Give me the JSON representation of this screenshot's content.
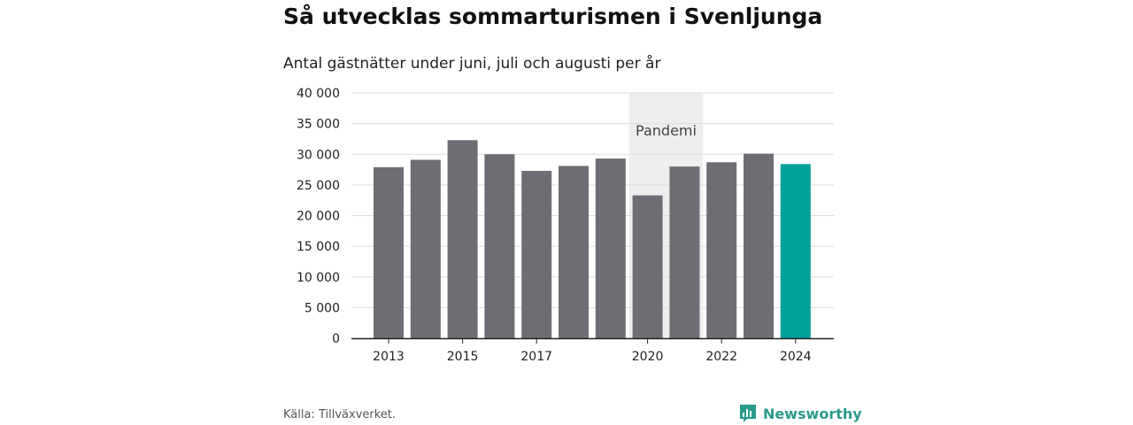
{
  "title": "Så utvecklas sommarturismen i Svenljunga",
  "subtitle": "Antal gästnätter under juni, juli och augusti per år",
  "source": "Källa: Tillväxverket.",
  "brand": "Newsworthy",
  "brand_icon": "newsworthy-logo-icon",
  "colors": {
    "bar": "#6e6d74",
    "highlight": "#00a19a",
    "shade": "#eeeeee",
    "grid": "#dddddd",
    "brand": "#2a9a8c"
  },
  "chart_data": {
    "type": "bar",
    "title": "Så utvecklas sommarturismen i Svenljunga",
    "subtitle": "Antal gästnätter under juni, juli och augusti per år",
    "xlabel": "",
    "ylabel": "",
    "ylim": [
      0,
      40000
    ],
    "yticks": [
      0,
      5000,
      10000,
      15000,
      20000,
      25000,
      30000,
      35000,
      40000
    ],
    "ytick_labels": [
      "0",
      "5 000",
      "10 000",
      "15 000",
      "20 000",
      "25 000",
      "30 000",
      "35 000",
      "40 000"
    ],
    "categories": [
      "2013",
      "2014",
      "2015",
      "2016",
      "2017",
      "2018",
      "2019",
      "2020",
      "2021",
      "2022",
      "2023",
      "2024"
    ],
    "xtick_labels": [
      "2013",
      "2015",
      "2017",
      "2020",
      "2022",
      "2024"
    ],
    "values": [
      27900,
      29100,
      32300,
      30000,
      27300,
      28100,
      29300,
      23300,
      28000,
      28700,
      30100,
      28400
    ],
    "highlight": "2024",
    "shaded_region": {
      "label": "Pandemi",
      "from": "2020",
      "to": "2021"
    },
    "grid": true,
    "legend": "none"
  }
}
